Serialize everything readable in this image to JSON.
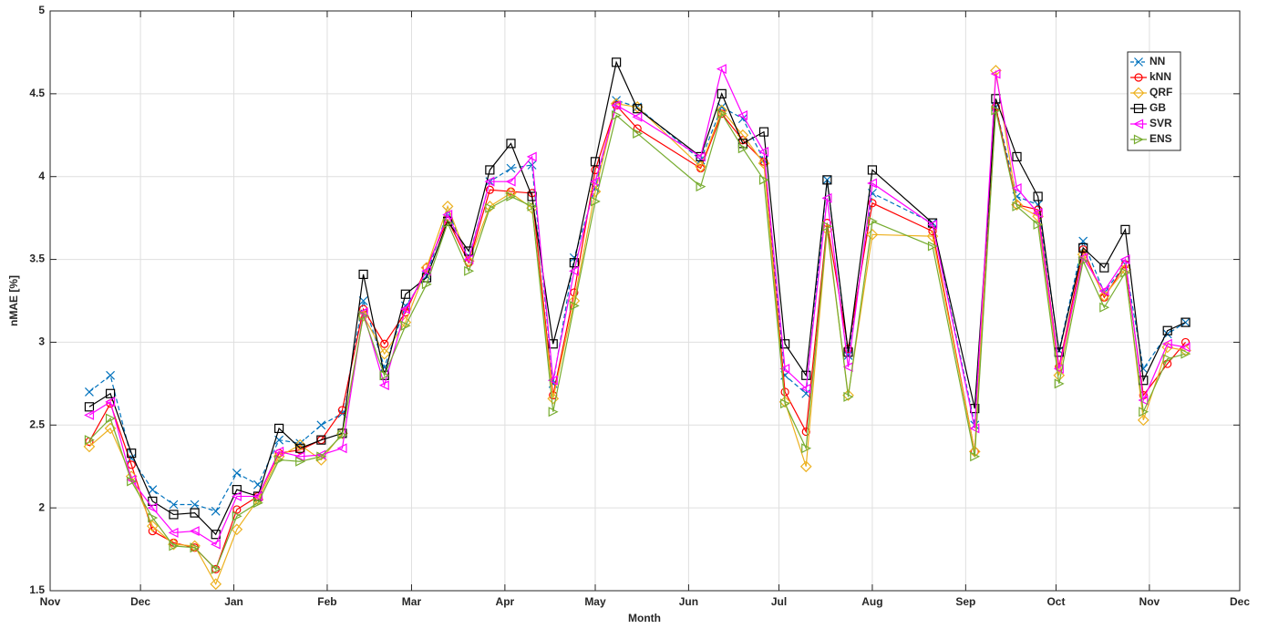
{
  "chart_data": {
    "type": "line",
    "xlabel": "Month",
    "ylabel": "nMAE [%]",
    "x": [
      13,
      20,
      27,
      34,
      41,
      48,
      55,
      62,
      69,
      76,
      83,
      90,
      97,
      104,
      111,
      118,
      125,
      132,
      139,
      146,
      153,
      160,
      167,
      174,
      181,
      188,
      195,
      216,
      223,
      230,
      237,
      244,
      251,
      258,
      265,
      273,
      293,
      307,
      314,
      321,
      328,
      335,
      343,
      350,
      357,
      363,
      371,
      377
    ],
    "xlim": [
      0,
      395
    ],
    "xticks": [
      {
        "value": 0,
        "label": "Nov"
      },
      {
        "value": 30,
        "label": "Dec"
      },
      {
        "value": 61,
        "label": "Jan"
      },
      {
        "value": 92,
        "label": "Feb"
      },
      {
        "value": 120,
        "label": "Mar"
      },
      {
        "value": 151,
        "label": "Apr"
      },
      {
        "value": 181,
        "label": "May"
      },
      {
        "value": 212,
        "label": "Jun"
      },
      {
        "value": 242,
        "label": "Jul"
      },
      {
        "value": 273,
        "label": "Aug"
      },
      {
        "value": 304,
        "label": "Sep"
      },
      {
        "value": 334,
        "label": "Oct"
      },
      {
        "value": 365,
        "label": "Nov"
      },
      {
        "value": 395,
        "label": "Dec"
      }
    ],
    "ylim": [
      1.5,
      5
    ],
    "yticks": [
      1.5,
      2,
      2.5,
      3,
      3.5,
      4,
      4.5,
      5
    ],
    "grid": true,
    "legend": "northeast",
    "series": [
      {
        "name": "NN",
        "color": "#0072bd",
        "marker": "x",
        "dashed": true,
        "values": [
          2.7,
          2.8,
          2.3,
          2.11,
          2.02,
          2.02,
          1.98,
          2.21,
          2.14,
          2.41,
          2.39,
          2.5,
          2.57,
          3.25,
          2.85,
          3.22,
          3.4,
          3.79,
          3.51,
          3.97,
          4.05,
          4.07,
          2.75,
          3.51,
          3.93,
          4.46,
          4.42,
          4.1,
          4.42,
          4.35,
          4.1,
          2.8,
          2.69,
          3.98,
          2.92,
          3.9,
          3.72,
          2.5,
          4.42,
          3.88,
          3.83,
          2.95,
          3.61,
          3.3,
          3.47,
          2.84,
          3.05,
          3.12
        ]
      },
      {
        "name": "kNN",
        "color": "#ff0000",
        "marker": "circle",
        "values": [
          2.4,
          2.63,
          2.26,
          1.86,
          1.79,
          1.76,
          1.63,
          1.99,
          2.07,
          2.33,
          2.35,
          2.41,
          2.59,
          3.2,
          2.99,
          3.18,
          3.45,
          3.74,
          3.48,
          3.92,
          3.91,
          3.9,
          2.68,
          3.3,
          4.04,
          4.43,
          4.29,
          4.05,
          4.38,
          4.22,
          4.09,
          2.7,
          2.46,
          3.72,
          2.96,
          3.84,
          3.67,
          2.34,
          4.42,
          3.83,
          3.8,
          2.85,
          3.56,
          3.27,
          3.47,
          2.68,
          2.87,
          3.0
        ]
      },
      {
        "name": "QRF",
        "color": "#edb120",
        "marker": "diamond",
        "values": [
          2.37,
          2.48,
          2.19,
          1.89,
          1.78,
          1.77,
          1.54,
          1.87,
          2.05,
          2.31,
          2.38,
          2.29,
          2.45,
          3.16,
          2.93,
          3.12,
          3.45,
          3.82,
          3.49,
          3.82,
          3.9,
          3.81,
          2.66,
          3.25,
          3.91,
          4.44,
          4.42,
          4.06,
          4.4,
          4.25,
          4.08,
          2.64,
          2.25,
          3.68,
          2.68,
          3.65,
          3.64,
          2.34,
          4.64,
          3.83,
          3.76,
          2.8,
          3.53,
          3.28,
          3.44,
          2.53,
          2.97,
          2.95
        ]
      },
      {
        "name": "GB",
        "color": "#000000",
        "marker": "square",
        "values": [
          2.61,
          2.69,
          2.33,
          2.04,
          1.96,
          1.97,
          1.84,
          2.11,
          2.07,
          2.48,
          2.36,
          2.41,
          2.45,
          3.41,
          2.8,
          3.29,
          3.39,
          3.73,
          3.55,
          4.04,
          4.2,
          3.88,
          2.99,
          3.48,
          4.09,
          4.69,
          4.41,
          4.12,
          4.5,
          4.2,
          4.27,
          2.99,
          2.8,
          3.98,
          2.94,
          4.04,
          3.72,
          2.6,
          4.47,
          4.12,
          3.88,
          2.94,
          3.57,
          3.45,
          3.68,
          2.77,
          3.07,
          3.12
        ]
      },
      {
        "name": "SVR",
        "color": "#ff00ff",
        "marker": "triangle-left",
        "values": [
          2.56,
          2.64,
          2.17,
          2.0,
          1.85,
          1.86,
          1.78,
          2.07,
          2.07,
          2.34,
          2.31,
          2.32,
          2.36,
          3.18,
          2.74,
          3.2,
          3.43,
          3.77,
          3.5,
          3.97,
          3.97,
          4.12,
          2.77,
          3.43,
          3.97,
          4.43,
          4.36,
          4.12,
          4.65,
          4.37,
          4.15,
          2.84,
          2.72,
          3.87,
          2.85,
          3.96,
          3.71,
          2.48,
          4.62,
          3.93,
          3.78,
          2.84,
          3.51,
          3.31,
          3.5,
          2.65,
          2.99,
          2.97
        ]
      },
      {
        "name": "ENS",
        "color": "#77ac30",
        "marker": "triangle-right",
        "values": [
          2.41,
          2.54,
          2.16,
          1.94,
          1.77,
          1.76,
          1.63,
          1.95,
          2.03,
          2.29,
          2.28,
          2.31,
          2.44,
          3.16,
          2.8,
          3.1,
          3.35,
          3.72,
          3.43,
          3.81,
          3.88,
          3.82,
          2.58,
          3.22,
          3.85,
          4.37,
          4.26,
          3.94,
          4.38,
          4.17,
          3.98,
          2.63,
          2.36,
          3.7,
          2.67,
          3.73,
          3.58,
          2.31,
          4.4,
          3.82,
          3.71,
          2.75,
          3.49,
          3.21,
          3.42,
          2.58,
          2.9,
          2.93
        ]
      }
    ]
  }
}
